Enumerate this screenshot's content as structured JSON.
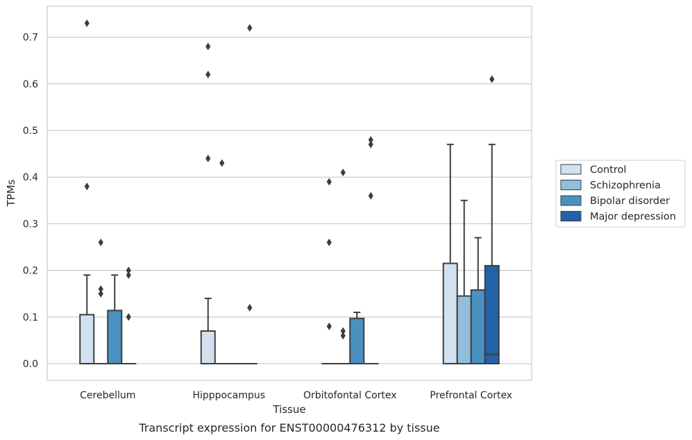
{
  "caption": "Transcript expression for ENST00000476312 by tissue",
  "chart_data": {
    "type": "box",
    "xlabel": "Tissue",
    "ylabel": "TPMs",
    "ylim": [
      -0.035,
      0.768
    ],
    "yticks": [
      0.0,
      0.1,
      0.2,
      0.3,
      0.4,
      0.5,
      0.6,
      0.7
    ],
    "ytick_labels": [
      "0.0",
      "0.1",
      "0.2",
      "0.3",
      "0.4",
      "0.5",
      "0.6",
      "0.7"
    ],
    "grid": "horizontal",
    "legend_position": "right",
    "categories": [
      "Cerebellum",
      "Hipppocampus",
      "Orbitofontal Cortex",
      "Prefrontal Cortex"
    ],
    "series": [
      {
        "name": "Control",
        "color": "#d1e1f0",
        "boxes": [
          {
            "q1": 0,
            "median": 0,
            "q3": 0.105,
            "whisker_low": 0,
            "whisker_high": 0.19,
            "outliers": [
              0.73,
              0.38
            ]
          },
          {
            "q1": 0,
            "median": 0,
            "q3": 0.07,
            "whisker_low": 0,
            "whisker_high": 0.14,
            "outliers": [
              0.68,
              0.62,
              0.44
            ]
          },
          {
            "q1": 0,
            "median": 0,
            "q3": 0,
            "whisker_low": 0,
            "whisker_high": 0,
            "outliers": [
              0.39,
              0.26,
              0.08
            ]
          },
          {
            "q1": 0,
            "median": 0,
            "q3": 0.215,
            "whisker_low": 0,
            "whisker_high": 0.47,
            "outliers": []
          }
        ]
      },
      {
        "name": "Schizophrenia",
        "color": "#91bfdb",
        "boxes": [
          {
            "q1": 0,
            "median": 0,
            "q3": 0,
            "whisker_low": 0,
            "whisker_high": 0,
            "outliers": [
              0.26,
              0.16,
              0.15
            ]
          },
          {
            "q1": 0,
            "median": 0,
            "q3": 0,
            "whisker_low": 0,
            "whisker_high": 0,
            "outliers": [
              0.43
            ]
          },
          {
            "q1": 0,
            "median": 0,
            "q3": 0,
            "whisker_low": 0,
            "whisker_high": 0,
            "outliers": [
              0.41,
              0.07,
              0.06
            ]
          },
          {
            "q1": 0,
            "median": 0,
            "q3": 0.145,
            "whisker_low": 0,
            "whisker_high": 0.35,
            "outliers": []
          }
        ]
      },
      {
        "name": "Bipolar disorder",
        "color": "#4a91c2",
        "boxes": [
          {
            "q1": 0,
            "median": 0,
            "q3": 0.114,
            "whisker_low": 0,
            "whisker_high": 0.19,
            "outliers": []
          },
          {
            "q1": 0,
            "median": 0,
            "q3": 0,
            "whisker_low": 0,
            "whisker_high": 0,
            "outliers": []
          },
          {
            "q1": 0,
            "median": 0,
            "q3": 0.097,
            "whisker_low": 0,
            "whisker_high": 0.11,
            "outliers": []
          },
          {
            "q1": 0,
            "median": 0,
            "q3": 0.158,
            "whisker_low": 0,
            "whisker_high": 0.27,
            "outliers": []
          }
        ]
      },
      {
        "name": "Major depression",
        "color": "#2462a7",
        "boxes": [
          {
            "q1": 0,
            "median": 0,
            "q3": 0,
            "whisker_low": 0,
            "whisker_high": 0,
            "outliers": [
              0.2,
              0.19,
              0.1
            ]
          },
          {
            "q1": 0,
            "median": 0,
            "q3": 0,
            "whisker_low": 0,
            "whisker_high": 0,
            "outliers": [
              0.72,
              0.12
            ]
          },
          {
            "q1": 0,
            "median": 0,
            "q3": 0,
            "whisker_low": 0,
            "whisker_high": 0,
            "outliers": [
              0.48,
              0.47,
              0.36
            ]
          },
          {
            "q1": 0,
            "median": 0.02,
            "q3": 0.21,
            "whisker_low": 0,
            "whisker_high": 0.47,
            "outliers": [
              0.61
            ]
          }
        ]
      }
    ]
  }
}
